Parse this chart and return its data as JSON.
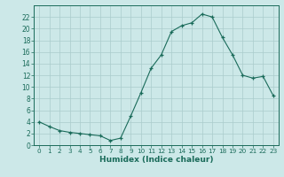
{
  "x": [
    0,
    1,
    2,
    3,
    4,
    5,
    6,
    7,
    8,
    9,
    10,
    11,
    12,
    13,
    14,
    15,
    16,
    17,
    18,
    19,
    20,
    21,
    22,
    23
  ],
  "y": [
    4.0,
    3.2,
    2.5,
    2.2,
    2.0,
    1.8,
    1.6,
    0.8,
    1.2,
    5.0,
    9.0,
    13.2,
    15.5,
    19.5,
    20.5,
    21.0,
    22.5,
    22.0,
    18.5,
    15.5,
    12.0,
    11.5,
    11.8,
    8.5
  ],
  "xlabel": "Humidex (Indice chaleur)",
  "ylim": [
    0,
    24
  ],
  "xlim": [
    -0.5,
    23.5
  ],
  "yticks": [
    0,
    2,
    4,
    6,
    8,
    10,
    12,
    14,
    16,
    18,
    20,
    22
  ],
  "xticks": [
    0,
    1,
    2,
    3,
    4,
    5,
    6,
    7,
    8,
    9,
    10,
    11,
    12,
    13,
    14,
    15,
    16,
    17,
    18,
    19,
    20,
    21,
    22,
    23
  ],
  "line_color": "#1a6b5a",
  "marker": "+",
  "bg_color": "#cce8e8",
  "grid_color": "#aacccc",
  "axis_color": "#1a6b5a",
  "text_color": "#1a6b5a"
}
